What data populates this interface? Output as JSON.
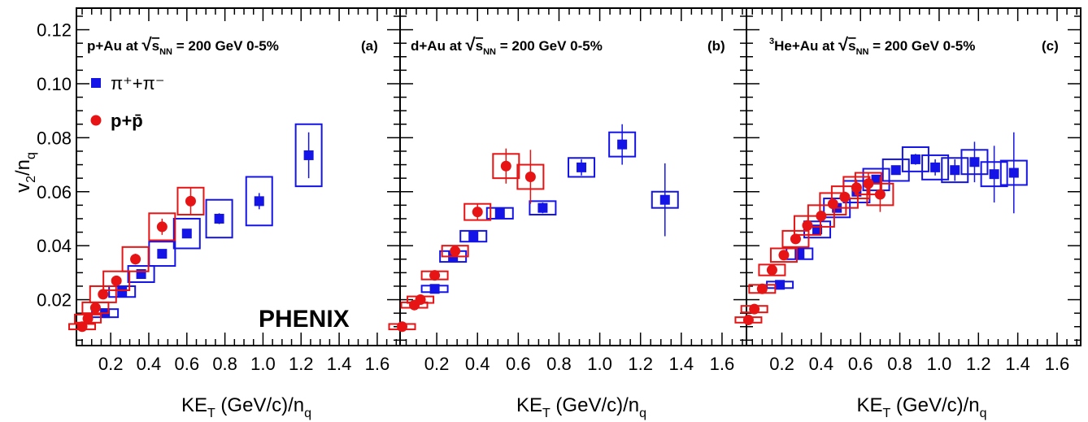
{
  "colors": {
    "pion": "#1414e6",
    "proton": "#e61414",
    "axis": "#000000"
  },
  "shared": {
    "ylabel": "v2/nq",
    "xlabel": "KET (GeV/c)/nq",
    "ylim": [
      0.003,
      0.128
    ],
    "yticks": [
      "0.02",
      "0.04",
      "0.06",
      "0.08",
      "0.10",
      "0.12"
    ],
    "xticks": [
      "0.2",
      "0.4",
      "0.6",
      "0.8",
      "1.0",
      "1.2",
      "1.4",
      "1.6"
    ],
    "legend": {
      "pion": "π⁺+π⁻",
      "proton": "p+p̄"
    },
    "logo": "PHENIX"
  },
  "chart_data": [
    {
      "type": "scatter",
      "title": "p+Au at √sNN = 200 GeV 0-5%",
      "tag": "(a)",
      "xlabel": "KET (GeV/c)/nq",
      "ylabel": "v2/nq",
      "xlim": [
        0.02,
        1.72
      ],
      "ylim": [
        0.003,
        0.128
      ],
      "legend_position": "top-left",
      "series": [
        {
          "name": "π⁺+π⁻",
          "marker": "square",
          "points": [
            {
              "x": 0.17,
              "y": 0.015,
              "stat": 0.0005,
              "sys": 0.0015
            },
            {
              "x": 0.26,
              "y": 0.023,
              "stat": 0.0008,
              "sys": 0.002
            },
            {
              "x": 0.36,
              "y": 0.0295,
              "stat": 0.001,
              "sys": 0.003
            },
            {
              "x": 0.47,
              "y": 0.037,
              "stat": 0.001,
              "sys": 0.0045
            },
            {
              "x": 0.6,
              "y": 0.0445,
              "stat": 0.0015,
              "sys": 0.0055
            },
            {
              "x": 0.77,
              "y": 0.05,
              "stat": 0.002,
              "sys": 0.007
            },
            {
              "x": 0.98,
              "y": 0.0565,
              "stat": 0.003,
              "sys": 0.009
            },
            {
              "x": 1.24,
              "y": 0.0735,
              "stat": 0.0085,
              "sys": 0.0115
            }
          ]
        },
        {
          "name": "p+p̄",
          "marker": "circle",
          "points": [
            {
              "x": 0.05,
              "y": 0.01,
              "stat": 0.0005,
              "sys": 0.001
            },
            {
              "x": 0.08,
              "y": 0.013,
              "stat": 0.0005,
              "sys": 0.0015
            },
            {
              "x": 0.12,
              "y": 0.017,
              "stat": 0.001,
              "sys": 0.002
            },
            {
              "x": 0.16,
              "y": 0.022,
              "stat": 0.001,
              "sys": 0.003
            },
            {
              "x": 0.23,
              "y": 0.027,
              "stat": 0.0015,
              "sys": 0.0035
            },
            {
              "x": 0.33,
              "y": 0.035,
              "stat": 0.002,
              "sys": 0.0045
            },
            {
              "x": 0.47,
              "y": 0.047,
              "stat": 0.003,
              "sys": 0.005
            },
            {
              "x": 0.62,
              "y": 0.0565,
              "stat": 0.005,
              "sys": 0.005
            }
          ]
        }
      ]
    },
    {
      "type": "scatter",
      "title": "d+Au at √sNN = 200 GeV 0-5%",
      "tag": "(b)",
      "xlabel": "KET (GeV/c)/nq",
      "ylabel": "v2/nq",
      "xlim": [
        0.02,
        1.72
      ],
      "ylim": [
        0.003,
        0.128
      ],
      "series": [
        {
          "name": "π⁺+π⁻",
          "marker": "square",
          "points": [
            {
              "x": 0.19,
              "y": 0.024,
              "stat": 0.0005,
              "sys": 0.0012
            },
            {
              "x": 0.28,
              "y": 0.036,
              "stat": 0.0005,
              "sys": 0.002
            },
            {
              "x": 0.38,
              "y": 0.0435,
              "stat": 0.0008,
              "sys": 0.002
            },
            {
              "x": 0.51,
              "y": 0.052,
              "stat": 0.001,
              "sys": 0.002
            },
            {
              "x": 0.72,
              "y": 0.054,
              "stat": 0.002,
              "sys": 0.0025
            },
            {
              "x": 0.91,
              "y": 0.069,
              "stat": 0.003,
              "sys": 0.0035
            },
            {
              "x": 1.11,
              "y": 0.0775,
              "stat": 0.0075,
              "sys": 0.0045
            },
            {
              "x": 1.32,
              "y": 0.057,
              "stat": 0.0135,
              "sys": 0.003
            }
          ]
        },
        {
          "name": "p+p̄",
          "marker": "circle",
          "points": [
            {
              "x": 0.03,
              "y": 0.01,
              "stat": 0.001,
              "sys": 0.001
            },
            {
              "x": 0.09,
              "y": 0.018,
              "stat": 0.001,
              "sys": 0.001
            },
            {
              "x": 0.12,
              "y": 0.02,
              "stat": 0.001,
              "sys": 0.0012
            },
            {
              "x": 0.19,
              "y": 0.029,
              "stat": 0.001,
              "sys": 0.0015
            },
            {
              "x": 0.29,
              "y": 0.038,
              "stat": 0.0015,
              "sys": 0.002
            },
            {
              "x": 0.4,
              "y": 0.0525,
              "stat": 0.003,
              "sys": 0.003
            },
            {
              "x": 0.54,
              "y": 0.0695,
              "stat": 0.0065,
              "sys": 0.0045
            },
            {
              "x": 0.66,
              "y": 0.0655,
              "stat": 0.01,
              "sys": 0.0045
            }
          ]
        }
      ]
    },
    {
      "type": "scatter",
      "title": "³He+Au at √sNN = 200 GeV 0-5%",
      "tag": "(c)",
      "xlabel": "KET (GeV/c)/nq",
      "ylabel": "v2/nq",
      "xlim": [
        0.02,
        1.72
      ],
      "ylim": [
        0.003,
        0.128
      ],
      "series": [
        {
          "name": "π⁺+π⁻",
          "marker": "square",
          "points": [
            {
              "x": 0.19,
              "y": 0.0255,
              "stat": 0.0005,
              "sys": 0.0012
            },
            {
              "x": 0.29,
              "y": 0.037,
              "stat": 0.0005,
              "sys": 0.002
            },
            {
              "x": 0.38,
              "y": 0.046,
              "stat": 0.0008,
              "sys": 0.003
            },
            {
              "x": 0.48,
              "y": 0.054,
              "stat": 0.001,
              "sys": 0.0035
            },
            {
              "x": 0.58,
              "y": 0.06,
              "stat": 0.001,
              "sys": 0.004
            },
            {
              "x": 0.68,
              "y": 0.0645,
              "stat": 0.001,
              "sys": 0.004
            },
            {
              "x": 0.78,
              "y": 0.068,
              "stat": 0.0015,
              "sys": 0.004
            },
            {
              "x": 0.88,
              "y": 0.072,
              "stat": 0.002,
              "sys": 0.0045
            },
            {
              "x": 0.98,
              "y": 0.069,
              "stat": 0.003,
              "sys": 0.0045
            },
            {
              "x": 1.08,
              "y": 0.068,
              "stat": 0.004,
              "sys": 0.0045
            },
            {
              "x": 1.18,
              "y": 0.071,
              "stat": 0.0075,
              "sys": 0.0045
            },
            {
              "x": 1.28,
              "y": 0.0665,
              "stat": 0.0105,
              "sys": 0.0045
            },
            {
              "x": 1.38,
              "y": 0.067,
              "stat": 0.015,
              "sys": 0.0045
            }
          ]
        },
        {
          "name": "p+p̄",
          "marker": "circle",
          "points": [
            {
              "x": 0.03,
              "y": 0.0125,
              "stat": 0.0005,
              "sys": 0.001
            },
            {
              "x": 0.06,
              "y": 0.0165,
              "stat": 0.0005,
              "sys": 0.0012
            },
            {
              "x": 0.1,
              "y": 0.024,
              "stat": 0.0008,
              "sys": 0.0015
            },
            {
              "x": 0.15,
              "y": 0.031,
              "stat": 0.0008,
              "sys": 0.002
            },
            {
              "x": 0.21,
              "y": 0.0365,
              "stat": 0.001,
              "sys": 0.0025
            },
            {
              "x": 0.27,
              "y": 0.0425,
              "stat": 0.001,
              "sys": 0.003
            },
            {
              "x": 0.33,
              "y": 0.0475,
              "stat": 0.001,
              "sys": 0.0035
            },
            {
              "x": 0.4,
              "y": 0.051,
              "stat": 0.0015,
              "sys": 0.004
            },
            {
              "x": 0.46,
              "y": 0.0555,
              "stat": 0.0015,
              "sys": 0.004
            },
            {
              "x": 0.52,
              "y": 0.058,
              "stat": 0.002,
              "sys": 0.004
            },
            {
              "x": 0.58,
              "y": 0.0615,
              "stat": 0.003,
              "sys": 0.004
            },
            {
              "x": 0.64,
              "y": 0.063,
              "stat": 0.004,
              "sys": 0.004
            },
            {
              "x": 0.7,
              "y": 0.059,
              "stat": 0.0065,
              "sys": 0.004
            }
          ]
        }
      ]
    }
  ]
}
